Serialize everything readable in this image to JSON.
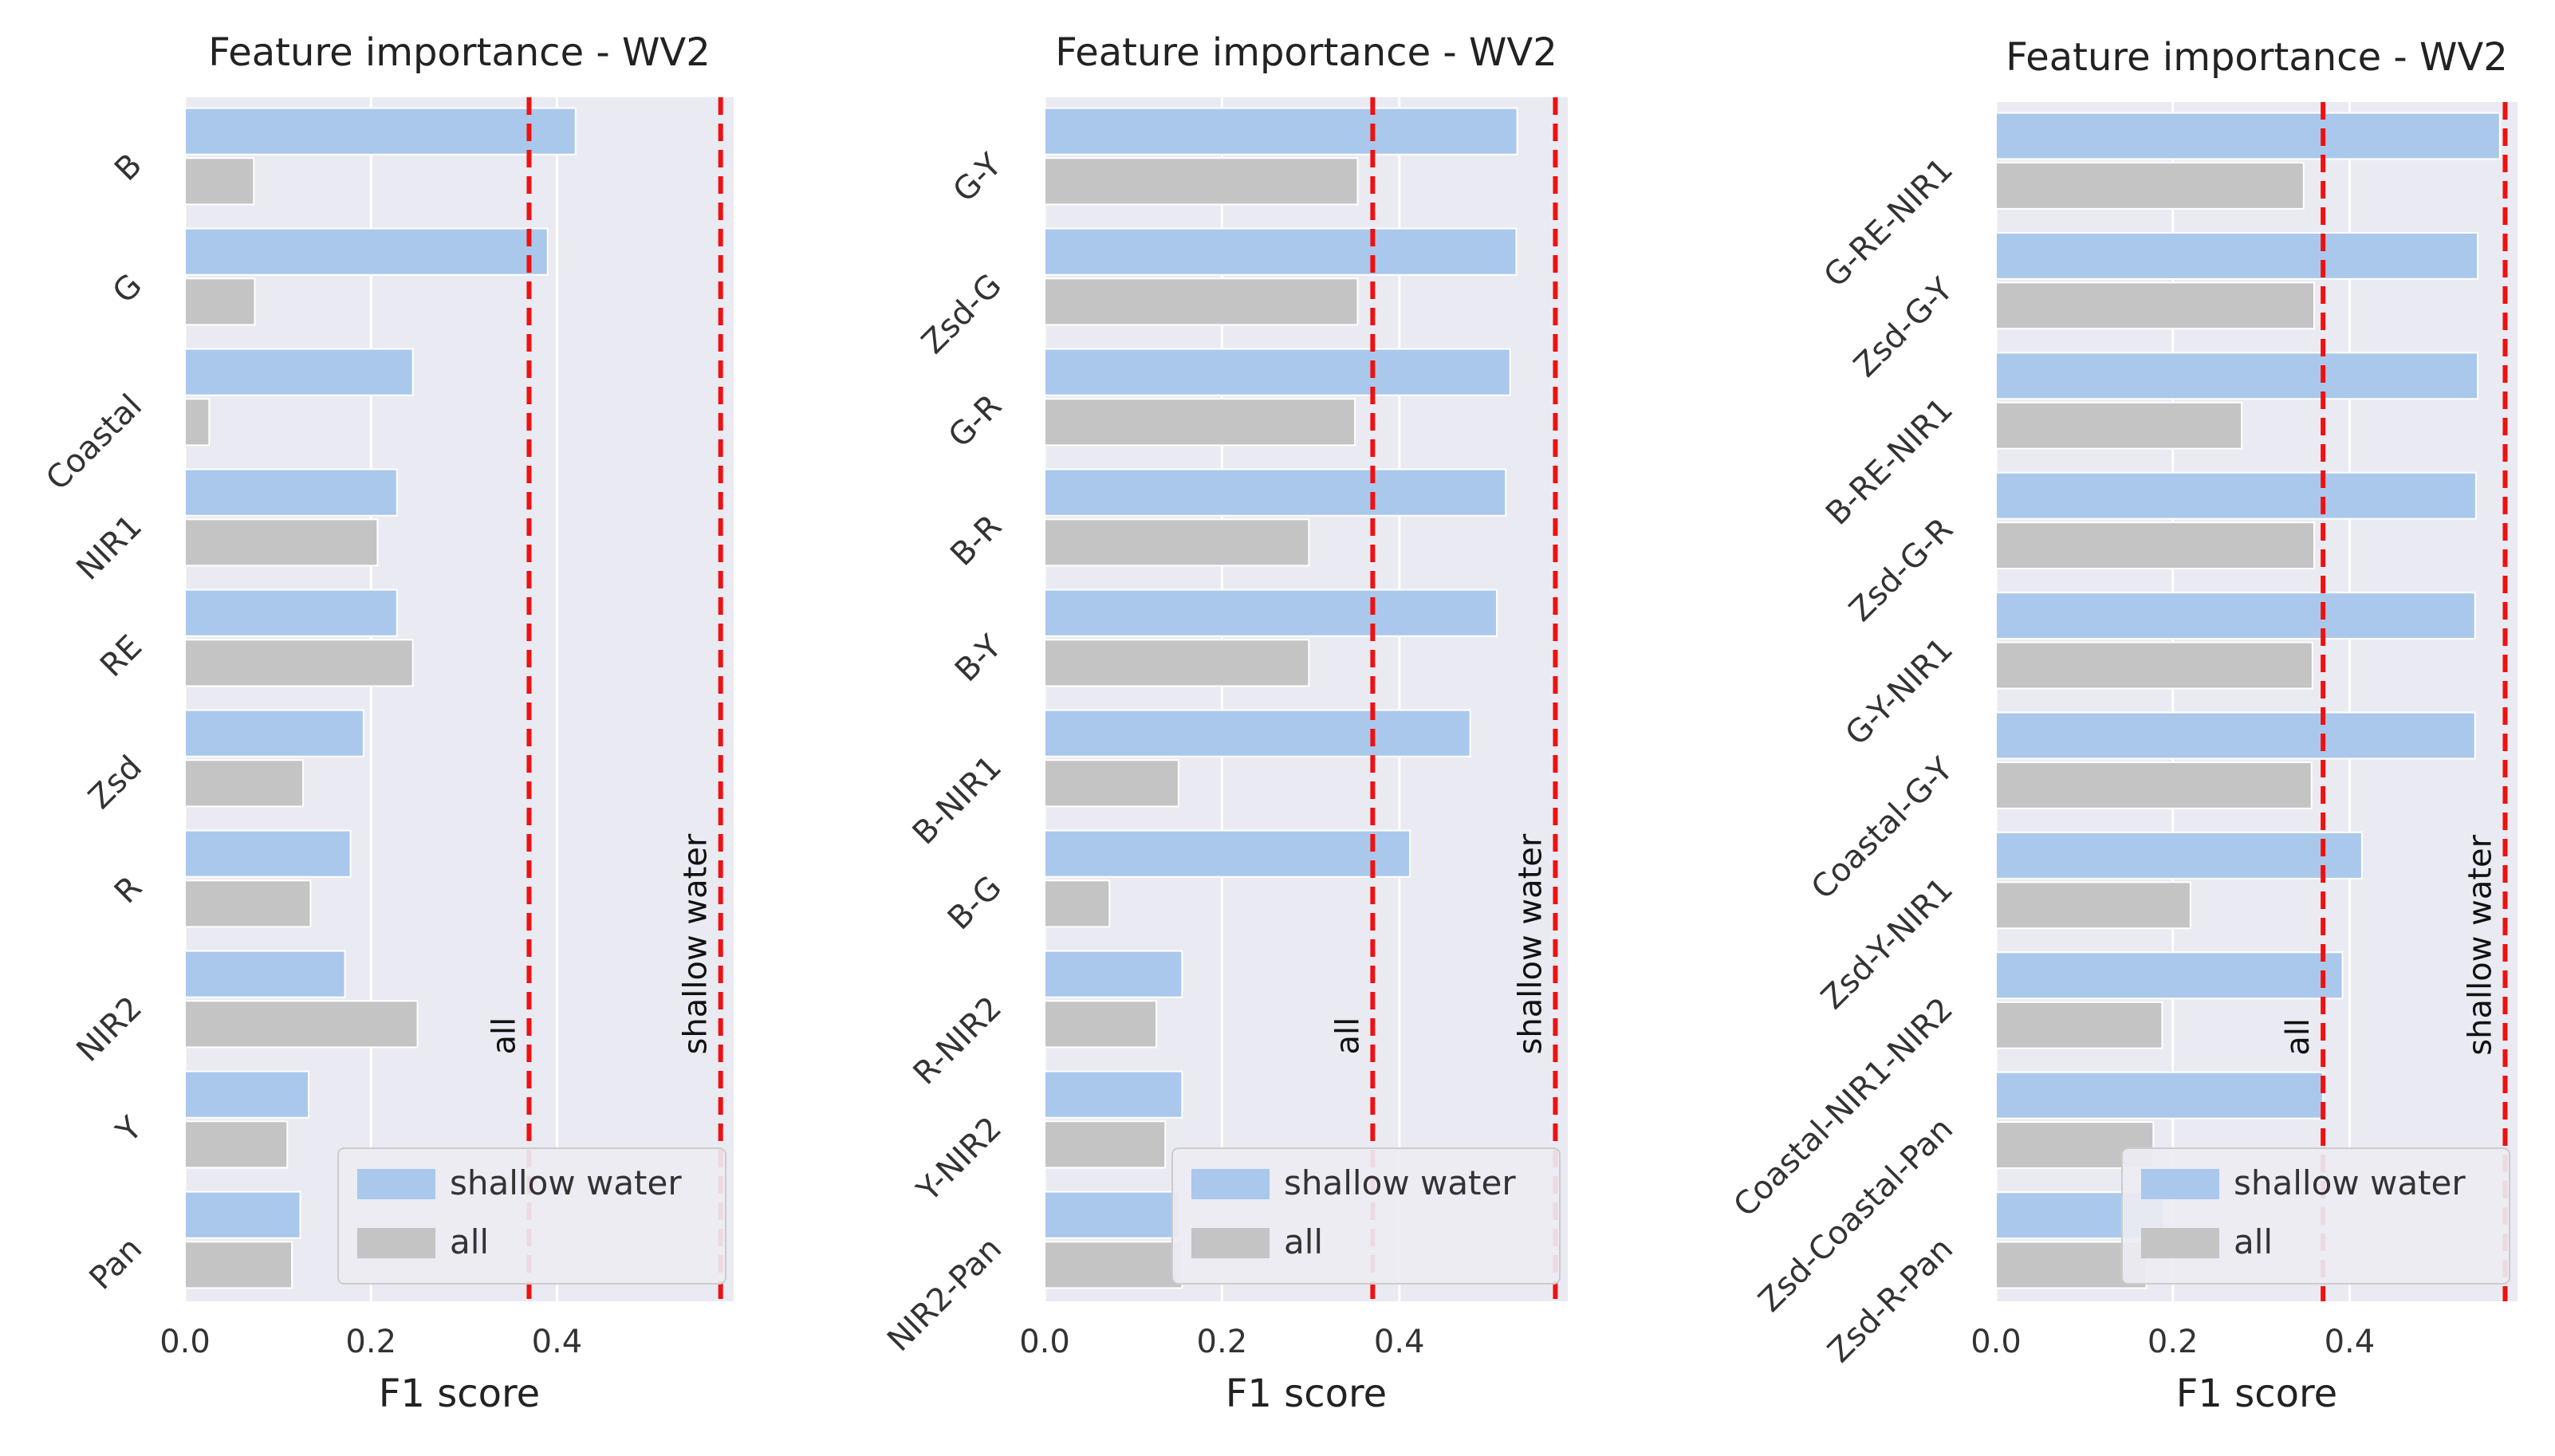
{
  "chart_data": [
    {
      "type": "bar",
      "orientation": "horizontal",
      "title": "Feature importance - WV2",
      "xlabel": "F1 score",
      "ylabel": "",
      "xlim": [
        0,
        0.59
      ],
      "xticks": [
        0.0,
        0.2,
        0.4
      ],
      "xtick_labels": [
        "0.0",
        "0.2",
        "0.4"
      ],
      "grid": true,
      "legend_position": "lower-right",
      "categories": [
        "B",
        "G",
        "Coastal",
        "NIR1",
        "RE",
        "Zsd",
        "R",
        "NIR2",
        "Y",
        "Pan"
      ],
      "series": [
        {
          "name": "shallow water",
          "color": "#aac8ec",
          "values": [
            0.42,
            0.39,
            0.245,
            0.228,
            0.228,
            0.192,
            0.178,
            0.172,
            0.133,
            0.124
          ]
        },
        {
          "name": "all",
          "color": "#c4c4c4",
          "values": [
            0.074,
            0.075,
            0.026,
            0.207,
            0.245,
            0.127,
            0.135,
            0.25,
            0.11,
            0.115
          ]
        }
      ],
      "reference_lines": [
        {
          "label": "all",
          "value": 0.37,
          "color": "#ee1111"
        },
        {
          "label": "shallow water",
          "value": 0.576,
          "color": "#ee1111"
        }
      ]
    },
    {
      "type": "bar",
      "orientation": "horizontal",
      "title": "Feature importance - WV2",
      "xlabel": "F1 score",
      "ylabel": "",
      "xlim": [
        0,
        0.59
      ],
      "xticks": [
        0.0,
        0.2,
        0.4
      ],
      "xtick_labels": [
        "0.0",
        "0.2",
        "0.4"
      ],
      "grid": true,
      "legend_position": "lower-right",
      "categories": [
        "G-Y",
        "Zsd-G",
        "G-R",
        "B-R",
        "B-Y",
        "B-NIR1",
        "B-G",
        "R-NIR2",
        "Y-NIR2",
        "NIR2-Pan"
      ],
      "series": [
        {
          "name": "shallow water",
          "color": "#aac8ec",
          "values": [
            0.533,
            0.532,
            0.525,
            0.52,
            0.51,
            0.48,
            0.412,
            0.155,
            0.155,
            0.152
          ]
        },
        {
          "name": "all",
          "color": "#c4c4c4",
          "values": [
            0.353,
            0.353,
            0.35,
            0.298,
            0.298,
            0.151,
            0.073,
            0.126,
            0.136,
            0.155
          ]
        }
      ],
      "reference_lines": [
        {
          "label": "all",
          "value": 0.37,
          "color": "#ee1111"
        },
        {
          "label": "shallow water",
          "value": 0.576,
          "color": "#ee1111"
        }
      ]
    },
    {
      "type": "bar",
      "orientation": "horizontal",
      "title": "Feature importance - WV2",
      "xlabel": "F1 score",
      "ylabel": "",
      "xlim": [
        0,
        0.59
      ],
      "xticks": [
        0.0,
        0.2,
        0.4
      ],
      "xtick_labels": [
        "0.0",
        "0.2",
        "0.4"
      ],
      "grid": true,
      "legend_position": "lower-right",
      "categories": [
        "G-RE-NIR1",
        "Zsd-G-Y",
        "B-RE-NIR1",
        "Zsd-G-R",
        "G-Y-NIR1",
        "Coastal-G-Y",
        "Zsd-Y-NIR1",
        "Coastal-NIR1-NIR2",
        "Zsd-Coastal-Pan",
        "Zsd-R-Pan"
      ],
      "series": [
        {
          "name": "shallow water",
          "color": "#aac8ec",
          "values": [
            0.57,
            0.545,
            0.545,
            0.543,
            0.542,
            0.542,
            0.414,
            0.392,
            0.37,
            0.19
          ]
        },
        {
          "name": "all",
          "color": "#c4c4c4",
          "values": [
            0.348,
            0.36,
            0.278,
            0.36,
            0.358,
            0.357,
            0.22,
            0.188,
            0.178,
            0.17
          ]
        }
      ],
      "reference_lines": [
        {
          "label": "all",
          "value": 0.37,
          "color": "#ee1111"
        },
        {
          "label": "shallow water",
          "value": 0.576,
          "color": "#ee1111"
        }
      ]
    }
  ]
}
